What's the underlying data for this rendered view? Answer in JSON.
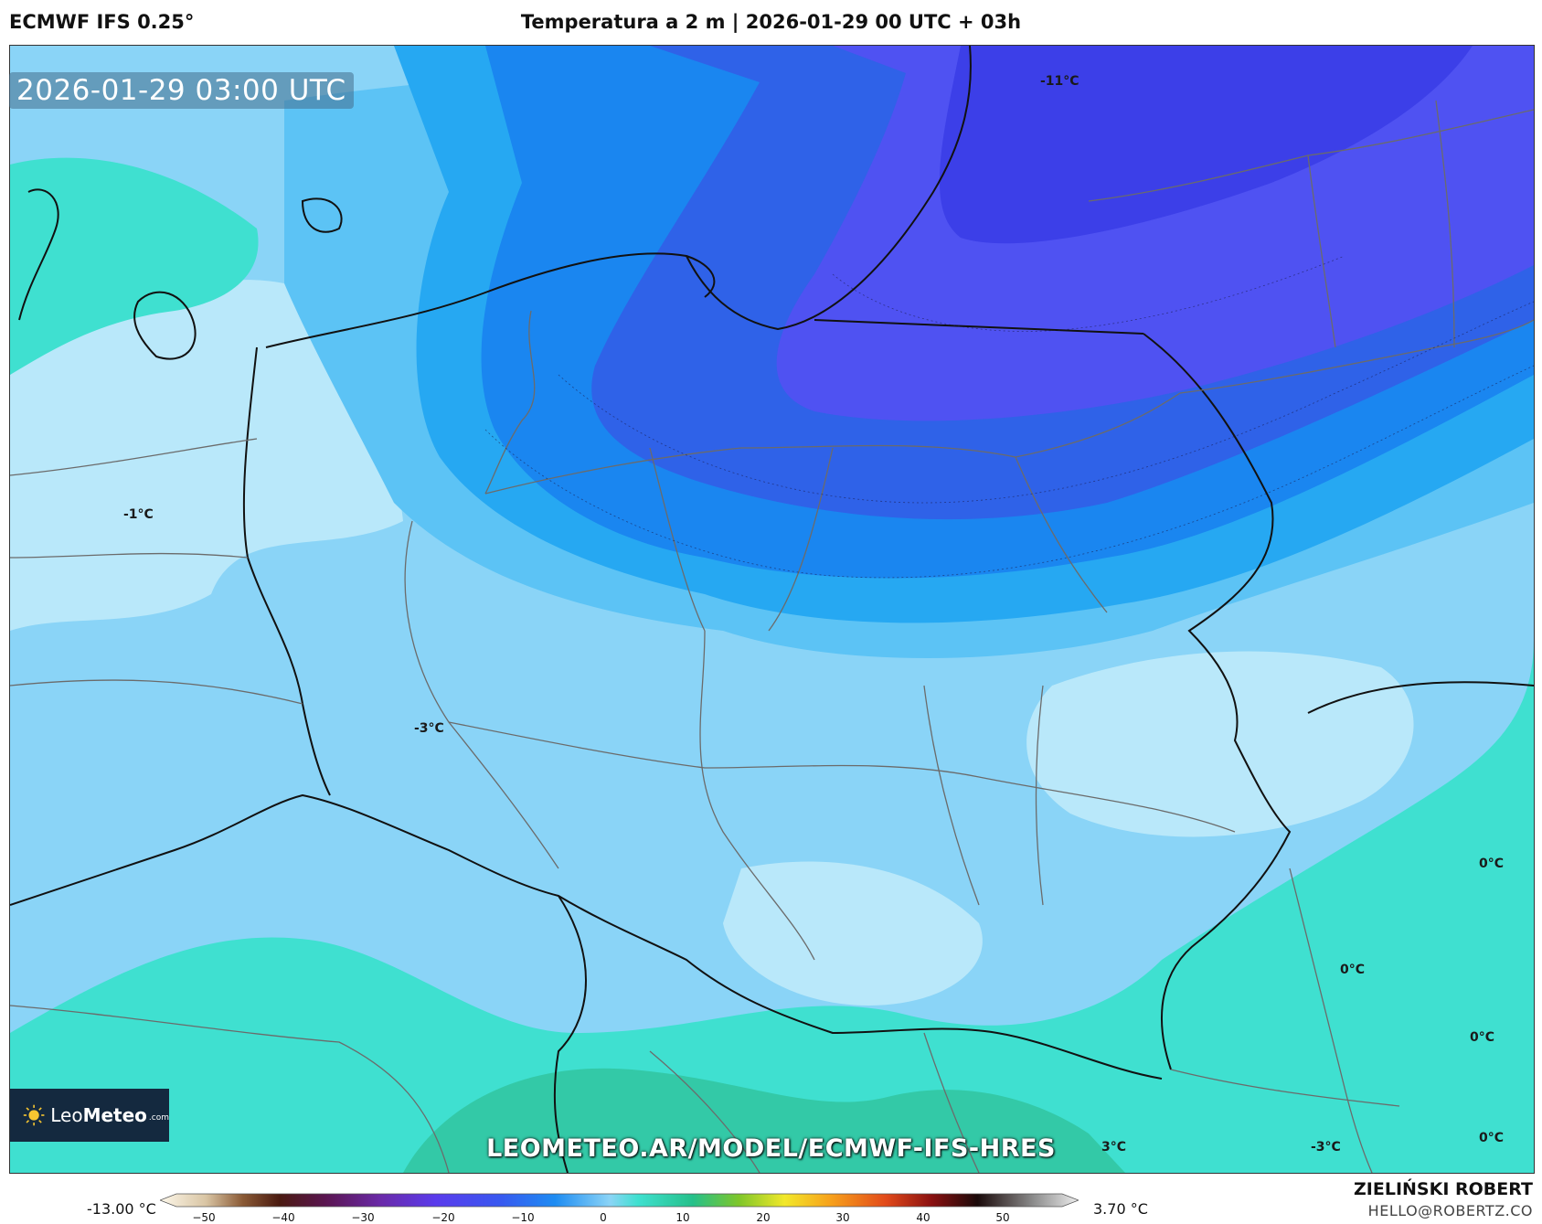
{
  "header": {
    "model": "ECMWF IFS 0.25°",
    "title": "Temperatura a 2 m | 2026-01-29 00 UTC + 03h"
  },
  "map": {
    "timestamp": "2026-01-29 03:00 UTC",
    "url": "LEOMETEO.AR/MODEL/ECMWF-IFS-HRES",
    "labels": [
      {
        "text": "-11°C"
      },
      {
        "text": "-1°C"
      },
      {
        "text": "-3°C"
      },
      {
        "text": "0°C"
      },
      {
        "text": "0°C"
      },
      {
        "text": "0°C"
      },
      {
        "text": "0°C"
      },
      {
        "text": "3°C"
      },
      {
        "text": "-3°C"
      }
    ]
  },
  "logo": {
    "name_light": "Leo",
    "name_bold": "Meteo",
    "domain": ".com"
  },
  "colorbar": {
    "min_label": "-13.00 °C",
    "max_label": "3.70 °C",
    "ticks": [
      "−50",
      "−40",
      "−30",
      "−20",
      "−10",
      "0",
      "10",
      "20",
      "30",
      "40",
      "50"
    ]
  },
  "footer": {
    "author": "ZIELIŃSKI ROBERT",
    "email": "HELLO@ROBERTZ.CO"
  }
}
